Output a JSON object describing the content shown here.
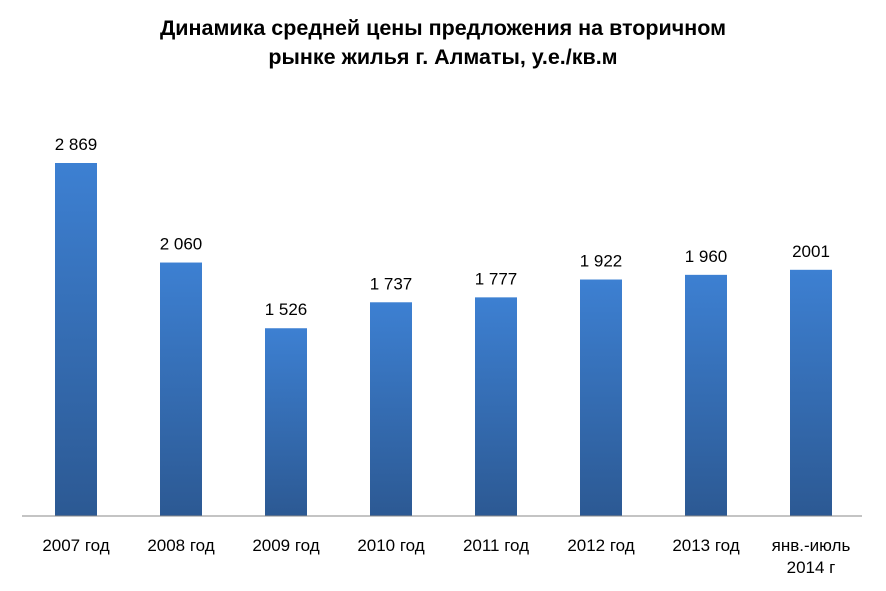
{
  "chart_data": {
    "type": "bar",
    "title_lines": [
      "Динамика средней цены предложения на вторичном",
      "рынке жилья г. Алматы, у.е./кв.м"
    ],
    "categories": [
      [
        "2007 год"
      ],
      [
        "2008 год"
      ],
      [
        "2009 год"
      ],
      [
        "2010 год"
      ],
      [
        "2011 год"
      ],
      [
        "2012 год"
      ],
      [
        "2013 год"
      ],
      [
        "янв.-июль",
        "2014 г"
      ]
    ],
    "values": [
      2869,
      2060,
      1526,
      1737,
      1777,
      1922,
      1960,
      2001
    ],
    "data_labels": [
      "2 869",
      "2 060",
      "1 526",
      "1 737",
      "1 777",
      "1 922",
      "1 960",
      "2001"
    ],
    "xlabel": "",
    "ylabel": "",
    "ylim": [
      0,
      2869
    ],
    "grid": false,
    "legend": "none",
    "colors": {
      "bar_top": "#3d80d2",
      "bar_bottom": "#2c5993",
      "axis": "#888888"
    }
  }
}
